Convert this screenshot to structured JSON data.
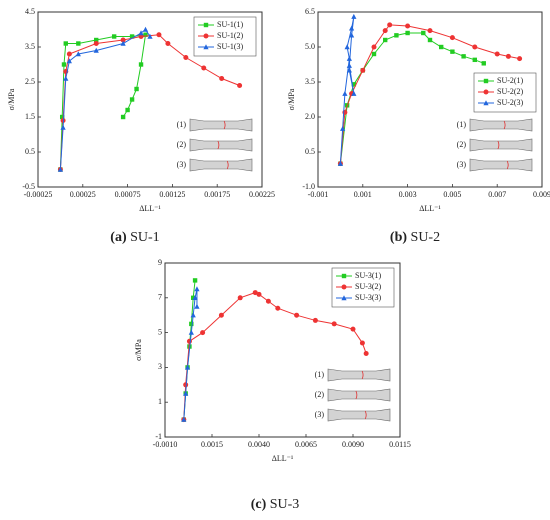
{
  "chart_data": [
    {
      "type": "scatter-line",
      "caption_tag": "(a)",
      "caption": "SU-1",
      "xlabel": "ΔLL⁻¹",
      "ylabel": "σ/MPa",
      "xlim": [
        -0.00025,
        0.00225
      ],
      "xticks": [
        -0.00025,
        0.00025,
        0.00075,
        0.00125,
        0.00175,
        0.00225
      ],
      "ylim": [
        -0.5,
        4.5
      ],
      "yticks": [
        -0.5,
        0.5,
        1.5,
        2.5,
        3.5,
        4.5
      ],
      "legend": "upper right",
      "inset_labels": [
        "(1)",
        "(2)",
        "(3)"
      ],
      "series": [
        {
          "name": "SU-1(1)",
          "color": "#22cc22",
          "marker": "square",
          "x": [
            0.0,
            2e-05,
            4e-05,
            6e-05,
            0.0002,
            0.0004,
            0.0006,
            0.0008,
            0.00095,
            0.0009,
            0.00085,
            0.0008,
            0.00075,
            0.0007
          ],
          "values": [
            0.0,
            1.5,
            3.0,
            3.6,
            3.6,
            3.7,
            3.8,
            3.8,
            3.85,
            3.0,
            2.3,
            2.0,
            1.7,
            1.5
          ]
        },
        {
          "name": "SU-1(2)",
          "color": "#ee3333",
          "marker": "circle",
          "x": [
            0.0,
            3e-05,
            6e-05,
            0.0001,
            0.0004,
            0.0007,
            0.0009,
            0.0011,
            0.0012,
            0.0014,
            0.0016,
            0.0018,
            0.002
          ],
          "values": [
            0.0,
            1.4,
            2.8,
            3.3,
            3.6,
            3.7,
            3.8,
            3.85,
            3.6,
            3.2,
            2.9,
            2.6,
            2.4
          ]
        },
        {
          "name": "SU-1(3)",
          "color": "#2266dd",
          "marker": "triangle",
          "x": [
            0.0,
            3e-05,
            6e-05,
            0.0001,
            0.0002,
            0.0004,
            0.0007,
            0.0009,
            0.00095,
            0.001
          ],
          "values": [
            0.0,
            1.2,
            2.6,
            3.1,
            3.3,
            3.4,
            3.6,
            3.9,
            4.0,
            3.8
          ]
        }
      ]
    },
    {
      "type": "scatter-line",
      "caption_tag": "(b)",
      "caption": "SU-2",
      "xlabel": "ΔLL⁻¹",
      "ylabel": "σ/MPa",
      "xlim": [
        -0.001,
        0.009
      ],
      "xticks": [
        -0.001,
        0.001,
        0.003,
        0.005,
        0.007,
        0.009
      ],
      "ylim": [
        -1.0,
        6.5
      ],
      "yticks": [
        {
          "value": -1.0,
          "label": "-1.0"
        },
        0.5,
        {
          "value": 2.0,
          "label": "2.0"
        },
        3.5,
        {
          "value": 5.0,
          "label": "5.0"
        },
        6.5
      ],
      "legend": "lower right",
      "inset_labels": [
        "(1)",
        "(2)",
        "(3)"
      ],
      "series": [
        {
          "name": "SU-2(1)",
          "color": "#22cc22",
          "marker": "square",
          "x": [
            0.0,
            0.0003,
            0.0006,
            0.001,
            0.0015,
            0.002,
            0.0025,
            0.003,
            0.0037,
            0.004,
            0.0045,
            0.005,
            0.0055,
            0.006,
            0.0064
          ],
          "values": [
            0.0,
            2.5,
            3.4,
            4.0,
            4.7,
            5.3,
            5.5,
            5.6,
            5.6,
            5.3,
            5.0,
            4.8,
            4.6,
            4.45,
            4.3
          ]
        },
        {
          "name": "SU-2(2)",
          "color": "#ee3333",
          "marker": "circle",
          "x": [
            0.0,
            0.0002,
            0.0005,
            0.001,
            0.0015,
            0.002,
            0.0022,
            0.003,
            0.004,
            0.005,
            0.006,
            0.007,
            0.0075,
            0.008
          ],
          "values": [
            0.0,
            2.2,
            3.0,
            4.0,
            5.0,
            5.7,
            5.95,
            5.9,
            5.7,
            5.4,
            5.0,
            4.7,
            4.6,
            4.5
          ]
        },
        {
          "name": "SU-2(3)",
          "color": "#2266dd",
          "marker": "triangle",
          "x": [
            0.0,
            0.0001,
            0.0002,
            0.0004,
            0.0003,
            0.0005,
            0.0006,
            0.0005,
            0.0004,
            0.0006,
            0.0004
          ],
          "values": [
            0.0,
            1.5,
            3.0,
            4.5,
            5.0,
            5.8,
            6.3,
            5.5,
            4.2,
            3.0,
            4.0
          ]
        }
      ]
    },
    {
      "type": "scatter-line",
      "caption_tag": "(c)",
      "caption": "SU-3",
      "xlabel": "ΔLL⁻¹",
      "ylabel": "σ/MPa",
      "xlim": [
        -0.001,
        0.0115
      ],
      "xticks": [
        {
          "value": -0.001,
          "label": "-0.0010"
        },
        0.0015,
        {
          "value": 0.004,
          "label": "0.0040"
        },
        0.0065,
        {
          "value": 0.009,
          "label": "0.0090"
        },
        0.0115
      ],
      "ylim": [
        -1,
        9
      ],
      "yticks": [
        -1,
        1,
        3,
        5,
        7,
        9
      ],
      "legend": "upper right",
      "inset_labels": [
        "(1)",
        "(2)",
        "(3)"
      ],
      "series": [
        {
          "name": "SU-3(1)",
          "color": "#22cc22",
          "marker": "square",
          "x": [
            0.0,
            0.0001,
            0.0002,
            0.0003,
            0.0004,
            0.0005,
            0.0006
          ],
          "values": [
            0.0,
            1.5,
            3.0,
            4.2,
            5.5,
            7.0,
            8.0
          ]
        },
        {
          "name": "SU-3(2)",
          "color": "#ee3333",
          "marker": "circle",
          "x": [
            0.0,
            0.0001,
            0.0003,
            0.001,
            0.002,
            0.003,
            0.0038,
            0.004,
            0.0045,
            0.005,
            0.006,
            0.007,
            0.008,
            0.009,
            0.0095,
            0.0097
          ],
          "values": [
            0.0,
            2.0,
            4.5,
            5.0,
            6.0,
            7.0,
            7.3,
            7.2,
            6.8,
            6.4,
            6.0,
            5.7,
            5.5,
            5.2,
            4.4,
            3.8
          ]
        },
        {
          "name": "SU-3(3)",
          "color": "#2266dd",
          "marker": "triangle",
          "x": [
            0.0,
            0.0001,
            0.0002,
            0.0004,
            0.0005,
            0.0006,
            0.0007,
            0.0007
          ],
          "values": [
            0.0,
            1.5,
            3.0,
            5.0,
            6.0,
            7.0,
            7.5,
            6.5
          ]
        }
      ]
    }
  ]
}
